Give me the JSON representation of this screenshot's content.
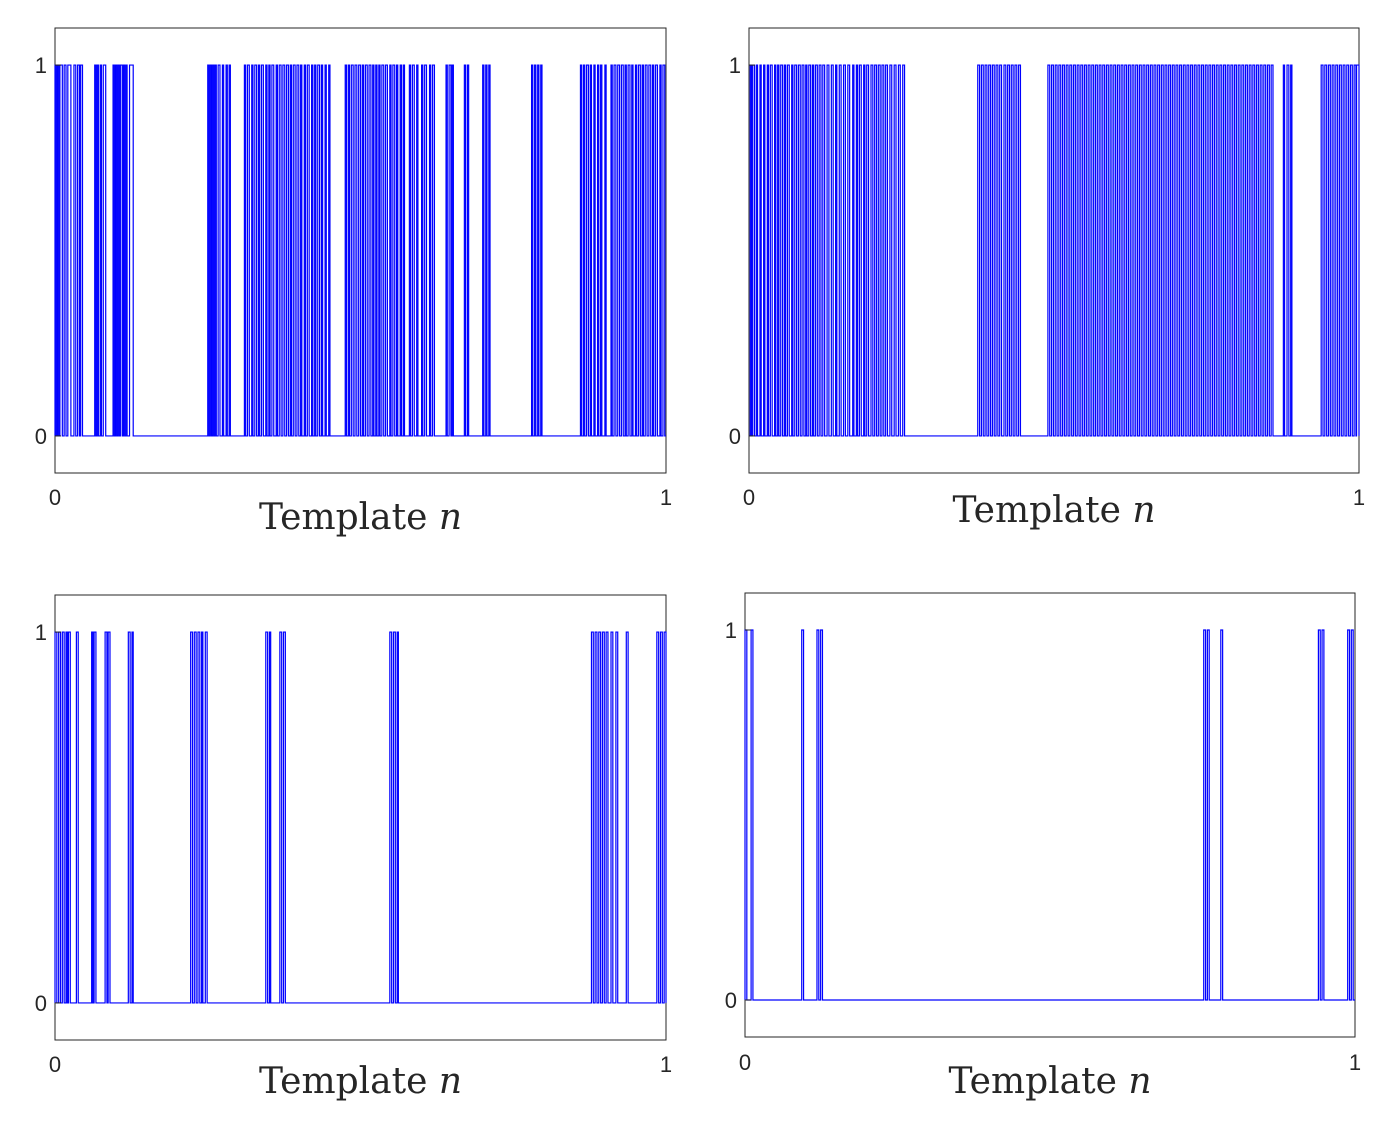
{
  "chart_data": [
    {
      "type": "line",
      "xlabel": "Template",
      "xlabel_var": "n",
      "xlim": [
        0,
        1
      ],
      "ylim": [
        -0.1,
        1.1
      ],
      "xticks": [
        "0",
        "1"
      ],
      "yticks": [
        "0",
        "1"
      ],
      "line_color": "#0000ff",
      "pulses": [
        [
          0.0,
          0.002
        ],
        [
          0.004,
          0.006
        ],
        [
          0.008,
          0.012
        ],
        [
          0.015,
          0.018
        ],
        [
          0.021,
          0.026
        ],
        [
          0.031,
          0.034
        ],
        [
          0.037,
          0.04
        ],
        [
          0.042,
          0.045
        ],
        [
          0.065,
          0.067
        ],
        [
          0.069,
          0.071
        ],
        [
          0.074,
          0.076
        ],
        [
          0.079,
          0.083
        ],
        [
          0.095,
          0.097
        ],
        [
          0.099,
          0.101
        ],
        [
          0.103,
          0.105
        ],
        [
          0.107,
          0.11
        ],
        [
          0.112,
          0.114
        ],
        [
          0.116,
          0.118
        ],
        [
          0.122,
          0.128
        ],
        [
          0.25,
          0.252
        ],
        [
          0.254,
          0.256
        ],
        [
          0.258,
          0.26
        ],
        [
          0.262,
          0.264
        ],
        [
          0.267,
          0.27
        ],
        [
          0.274,
          0.276
        ],
        [
          0.28,
          0.282
        ],
        [
          0.285,
          0.287
        ],
        [
          0.31,
          0.312
        ],
        [
          0.315,
          0.318
        ],
        [
          0.322,
          0.324
        ],
        [
          0.327,
          0.33
        ],
        [
          0.333,
          0.335
        ],
        [
          0.338,
          0.341
        ],
        [
          0.345,
          0.347
        ],
        [
          0.35,
          0.352
        ],
        [
          0.355,
          0.358
        ],
        [
          0.362,
          0.364
        ],
        [
          0.367,
          0.37
        ],
        [
          0.373,
          0.376
        ],
        [
          0.379,
          0.382
        ],
        [
          0.385,
          0.387
        ],
        [
          0.39,
          0.393
        ],
        [
          0.396,
          0.399
        ],
        [
          0.402,
          0.404
        ],
        [
          0.408,
          0.41
        ],
        [
          0.413,
          0.416
        ],
        [
          0.42,
          0.422
        ],
        [
          0.425,
          0.427
        ],
        [
          0.43,
          0.433
        ],
        [
          0.436,
          0.438
        ],
        [
          0.442,
          0.444
        ],
        [
          0.448,
          0.45
        ],
        [
          0.475,
          0.477
        ],
        [
          0.48,
          0.482
        ],
        [
          0.485,
          0.488
        ],
        [
          0.491,
          0.494
        ],
        [
          0.497,
          0.5
        ],
        [
          0.503,
          0.505
        ],
        [
          0.508,
          0.511
        ],
        [
          0.514,
          0.517
        ],
        [
          0.52,
          0.522
        ],
        [
          0.525,
          0.527
        ],
        [
          0.53,
          0.532
        ],
        [
          0.535,
          0.538
        ],
        [
          0.541,
          0.544
        ],
        [
          0.548,
          0.55
        ],
        [
          0.553,
          0.556
        ],
        [
          0.559,
          0.561
        ],
        [
          0.565,
          0.567
        ],
        [
          0.57,
          0.572
        ],
        [
          0.58,
          0.582
        ],
        [
          0.585,
          0.588
        ],
        [
          0.592,
          0.594
        ],
        [
          0.6,
          0.602
        ],
        [
          0.605,
          0.608
        ],
        [
          0.613,
          0.615
        ],
        [
          0.618,
          0.621
        ],
        [
          0.64,
          0.642
        ],
        [
          0.645,
          0.648
        ],
        [
          0.65,
          0.652
        ],
        [
          0.67,
          0.672
        ],
        [
          0.675,
          0.677
        ],
        [
          0.7,
          0.702
        ],
        [
          0.705,
          0.707
        ],
        [
          0.71,
          0.712
        ],
        [
          0.78,
          0.782
        ],
        [
          0.785,
          0.787
        ],
        [
          0.79,
          0.792
        ],
        [
          0.795,
          0.797
        ],
        [
          0.86,
          0.862
        ],
        [
          0.865,
          0.867
        ],
        [
          0.87,
          0.873
        ],
        [
          0.876,
          0.878
        ],
        [
          0.882,
          0.884
        ],
        [
          0.888,
          0.89
        ],
        [
          0.893,
          0.895
        ],
        [
          0.9,
          0.902
        ],
        [
          0.91,
          0.912
        ],
        [
          0.915,
          0.918
        ],
        [
          0.921,
          0.924
        ],
        [
          0.927,
          0.93
        ],
        [
          0.933,
          0.935
        ],
        [
          0.938,
          0.941
        ],
        [
          0.944,
          0.946
        ],
        [
          0.95,
          0.952
        ],
        [
          0.955,
          0.958
        ],
        [
          0.961,
          0.963
        ],
        [
          0.966,
          0.969
        ],
        [
          0.972,
          0.975
        ],
        [
          0.978,
          0.98
        ],
        [
          0.983,
          0.986
        ],
        [
          0.99,
          0.992
        ],
        [
          0.995,
          0.998
        ]
      ]
    },
    {
      "type": "line",
      "xlabel": "Template",
      "xlabel_var": "n",
      "xlim": [
        0,
        1
      ],
      "ylim": [
        -0.1,
        1.1
      ],
      "xticks": [
        "0",
        "1"
      ],
      "yticks": [
        "0",
        "1"
      ],
      "line_color": "#0000ff",
      "pulses": [
        [
          0.002,
          0.004
        ],
        [
          0.006,
          0.009
        ],
        [
          0.012,
          0.014
        ],
        [
          0.018,
          0.02
        ],
        [
          0.024,
          0.026
        ],
        [
          0.03,
          0.032
        ],
        [
          0.035,
          0.038
        ],
        [
          0.042,
          0.044
        ],
        [
          0.047,
          0.049
        ],
        [
          0.052,
          0.055
        ],
        [
          0.058,
          0.06
        ],
        [
          0.063,
          0.066
        ],
        [
          0.07,
          0.072
        ],
        [
          0.075,
          0.078
        ],
        [
          0.081,
          0.084
        ],
        [
          0.087,
          0.09
        ],
        [
          0.093,
          0.095
        ],
        [
          0.098,
          0.101
        ],
        [
          0.104,
          0.106
        ],
        [
          0.109,
          0.112
        ],
        [
          0.115,
          0.118
        ],
        [
          0.121,
          0.124
        ],
        [
          0.128,
          0.131
        ],
        [
          0.135,
          0.138
        ],
        [
          0.142,
          0.144
        ],
        [
          0.148,
          0.151
        ],
        [
          0.155,
          0.158
        ],
        [
          0.162,
          0.165
        ],
        [
          0.17,
          0.172
        ],
        [
          0.176,
          0.178
        ],
        [
          0.181,
          0.184
        ],
        [
          0.188,
          0.19
        ],
        [
          0.193,
          0.196
        ],
        [
          0.2,
          0.203
        ],
        [
          0.206,
          0.209
        ],
        [
          0.212,
          0.215
        ],
        [
          0.218,
          0.221
        ],
        [
          0.224,
          0.227
        ],
        [
          0.231,
          0.234
        ],
        [
          0.238,
          0.241
        ],
        [
          0.245,
          0.248
        ],
        [
          0.252,
          0.255
        ],
        [
          0.375,
          0.378
        ],
        [
          0.381,
          0.384
        ],
        [
          0.387,
          0.39
        ],
        [
          0.393,
          0.396
        ],
        [
          0.399,
          0.402
        ],
        [
          0.405,
          0.408
        ],
        [
          0.411,
          0.414
        ],
        [
          0.418,
          0.421
        ],
        [
          0.424,
          0.427
        ],
        [
          0.43,
          0.433
        ],
        [
          0.436,
          0.439
        ],
        [
          0.442,
          0.445
        ],
        [
          0.49,
          0.493
        ],
        [
          0.496,
          0.499
        ],
        [
          0.502,
          0.505
        ],
        [
          0.508,
          0.511
        ],
        [
          0.514,
          0.517
        ],
        [
          0.52,
          0.523
        ],
        [
          0.526,
          0.529
        ],
        [
          0.532,
          0.535
        ],
        [
          0.538,
          0.541
        ],
        [
          0.544,
          0.547
        ],
        [
          0.55,
          0.553
        ],
        [
          0.556,
          0.559
        ],
        [
          0.562,
          0.565
        ],
        [
          0.568,
          0.571
        ],
        [
          0.574,
          0.577
        ],
        [
          0.58,
          0.583
        ],
        [
          0.586,
          0.589
        ],
        [
          0.592,
          0.595
        ],
        [
          0.598,
          0.601
        ],
        [
          0.604,
          0.607
        ],
        [
          0.61,
          0.613
        ],
        [
          0.616,
          0.619
        ],
        [
          0.622,
          0.625
        ],
        [
          0.628,
          0.631
        ],
        [
          0.634,
          0.637
        ],
        [
          0.64,
          0.643
        ],
        [
          0.646,
          0.649
        ],
        [
          0.652,
          0.655
        ],
        [
          0.658,
          0.661
        ],
        [
          0.664,
          0.667
        ],
        [
          0.67,
          0.673
        ],
        [
          0.676,
          0.679
        ],
        [
          0.682,
          0.685
        ],
        [
          0.688,
          0.691
        ],
        [
          0.694,
          0.697
        ],
        [
          0.7,
          0.703
        ],
        [
          0.706,
          0.709
        ],
        [
          0.712,
          0.715
        ],
        [
          0.718,
          0.721
        ],
        [
          0.724,
          0.727
        ],
        [
          0.73,
          0.733
        ],
        [
          0.736,
          0.739
        ],
        [
          0.742,
          0.745
        ],
        [
          0.748,
          0.751
        ],
        [
          0.754,
          0.757
        ],
        [
          0.76,
          0.763
        ],
        [
          0.766,
          0.769
        ],
        [
          0.772,
          0.775
        ],
        [
          0.778,
          0.781
        ],
        [
          0.784,
          0.787
        ],
        [
          0.79,
          0.793
        ],
        [
          0.796,
          0.799
        ],
        [
          0.802,
          0.805
        ],
        [
          0.808,
          0.811
        ],
        [
          0.814,
          0.817
        ],
        [
          0.82,
          0.823
        ],
        [
          0.826,
          0.829
        ],
        [
          0.832,
          0.835
        ],
        [
          0.838,
          0.841
        ],
        [
          0.844,
          0.847
        ],
        [
          0.85,
          0.853
        ],
        [
          0.856,
          0.859
        ],
        [
          0.876,
          0.878
        ],
        [
          0.882,
          0.885
        ],
        [
          0.888,
          0.89
        ],
        [
          0.938,
          0.941
        ],
        [
          0.944,
          0.947
        ],
        [
          0.95,
          0.953
        ],
        [
          0.956,
          0.959
        ],
        [
          0.962,
          0.965
        ],
        [
          0.968,
          0.971
        ],
        [
          0.974,
          0.977
        ],
        [
          0.98,
          0.983
        ],
        [
          0.986,
          0.989
        ],
        [
          0.992,
          0.995
        ],
        [
          0.996,
          1.0
        ]
      ]
    },
    {
      "type": "line",
      "xlabel": "Template",
      "xlabel_var": "n",
      "xlim": [
        0,
        1
      ],
      "ylim": [
        -0.1,
        1.1
      ],
      "xticks": [
        "0",
        "1"
      ],
      "yticks": [
        "0",
        "1"
      ],
      "line_color": "#0000ff",
      "pulses": [
        [
          0.0,
          0.003
        ],
        [
          0.006,
          0.009
        ],
        [
          0.012,
          0.015
        ],
        [
          0.018,
          0.02
        ],
        [
          0.022,
          0.025
        ],
        [
          0.035,
          0.038
        ],
        [
          0.06,
          0.062
        ],
        [
          0.064,
          0.067
        ],
        [
          0.082,
          0.085
        ],
        [
          0.087,
          0.09
        ],
        [
          0.12,
          0.123
        ],
        [
          0.126,
          0.128
        ],
        [
          0.222,
          0.225
        ],
        [
          0.228,
          0.231
        ],
        [
          0.234,
          0.237
        ],
        [
          0.24,
          0.242
        ],
        [
          0.246,
          0.249
        ],
        [
          0.345,
          0.348
        ],
        [
          0.351,
          0.353
        ],
        [
          0.368,
          0.371
        ],
        [
          0.374,
          0.377
        ],
        [
          0.548,
          0.551
        ],
        [
          0.554,
          0.557
        ],
        [
          0.56,
          0.562
        ],
        [
          0.878,
          0.881
        ],
        [
          0.884,
          0.887
        ],
        [
          0.89,
          0.893
        ],
        [
          0.896,
          0.899
        ],
        [
          0.902,
          0.905
        ],
        [
          0.91,
          0.913
        ],
        [
          0.918,
          0.921
        ],
        [
          0.935,
          0.938
        ],
        [
          0.985,
          0.988
        ],
        [
          0.991,
          0.994
        ],
        [
          0.997,
          1.0
        ]
      ]
    },
    {
      "type": "line",
      "xlabel": "Template",
      "xlabel_var": "n",
      "xlim": [
        0,
        1
      ],
      "ylim": [
        -0.1,
        1.1
      ],
      "xticks": [
        "0",
        "1"
      ],
      "yticks": [
        "0",
        "1"
      ],
      "line_color": "#0000ff",
      "pulses": [
        [
          0.0,
          0.003
        ],
        [
          0.01,
          0.013
        ],
        [
          0.093,
          0.096
        ],
        [
          0.118,
          0.121
        ],
        [
          0.124,
          0.127
        ],
        [
          0.752,
          0.755
        ],
        [
          0.758,
          0.761
        ],
        [
          0.78,
          0.783
        ],
        [
          0.94,
          0.943
        ],
        [
          0.946,
          0.949
        ],
        [
          0.988,
          0.991
        ],
        [
          0.994,
          0.997
        ]
      ]
    }
  ]
}
